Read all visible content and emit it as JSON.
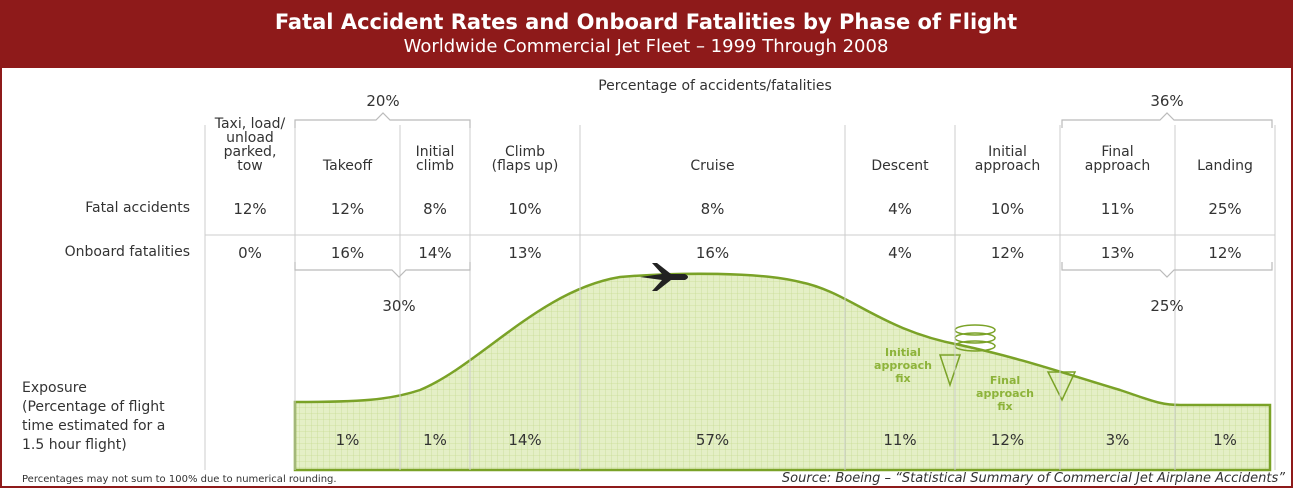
{
  "header": {
    "title": "Fatal Accident Rates and Onboard Fatalities by Phase of Flight",
    "subtitle": "Worldwide Commercial Jet Fleet – 1999 Through 2008"
  },
  "caption": "Percentage of accidents/fatalities",
  "row_labels": {
    "fatal_accidents": "Fatal accidents",
    "onboard_fatalities": "Onboard fatalities",
    "exposure": [
      "Exposure",
      "(Percentage of flight",
      "time estimated for a",
      "1.5 hour flight)"
    ]
  },
  "phases": [
    {
      "name": [
        "Taxi, load/",
        "unload",
        "parked,",
        "tow"
      ],
      "fatal_accidents": "12%",
      "onboard_fatalities": "0%",
      "exposure": null
    },
    {
      "name": [
        "Takeoff"
      ],
      "fatal_accidents": "12%",
      "onboard_fatalities": "16%",
      "exposure": "1%"
    },
    {
      "name": [
        "Initial",
        "climb"
      ],
      "fatal_accidents": "8%",
      "onboard_fatalities": "14%",
      "exposure": "1%"
    },
    {
      "name": [
        "Climb",
        "(flaps up)"
      ],
      "fatal_accidents": "10%",
      "onboard_fatalities": "13%",
      "exposure": "14%"
    },
    {
      "name": [
        "Cruise"
      ],
      "fatal_accidents": "8%",
      "onboard_fatalities": "16%",
      "exposure": "57%"
    },
    {
      "name": [
        "Descent"
      ],
      "fatal_accidents": "4%",
      "onboard_fatalities": "4%",
      "exposure": "11%"
    },
    {
      "name": [
        "Initial",
        "approach"
      ],
      "fatal_accidents": "10%",
      "onboard_fatalities": "12%",
      "exposure": "12%"
    },
    {
      "name": [
        "Final",
        "approach"
      ],
      "fatal_accidents": "11%",
      "onboard_fatalities": "13%",
      "exposure": "3%"
    },
    {
      "name": [
        "Landing"
      ],
      "fatal_accidents": "25%",
      "onboard_fatalities": "12%",
      "exposure": "1%"
    }
  ],
  "groups": {
    "takeoff_climb_accidents": "20%",
    "takeoff_climb_fatalities": "30%",
    "approach_landing_accidents": "36%",
    "approach_landing_fatalities": "25%"
  },
  "annotations": {
    "initial_approach_fix": [
      "Initial",
      "approach",
      "fix"
    ],
    "final_approach_fix": [
      "Final",
      "approach",
      "fix"
    ]
  },
  "footnote": "Percentages may not sum to 100% due to numerical rounding.",
  "source": "Source: Boeing – “Statistical Summary of Commercial Jet Airplane Accidents”"
}
